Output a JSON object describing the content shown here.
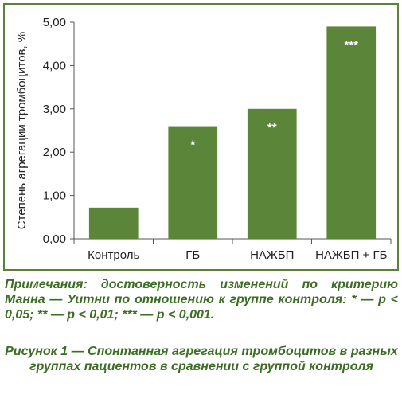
{
  "chart_data": {
    "type": "bar",
    "categories": [
      "Контроль",
      "ГБ",
      "НАЖБП",
      "НАЖБП + ГБ"
    ],
    "values": [
      0.72,
      2.6,
      3.0,
      4.9
    ],
    "annotations": [
      "",
      "*",
      "**",
      "***"
    ],
    "ylabel": "Степень агрегации тромбоцитов, %",
    "xlabel": "",
    "yticks": [
      "0,00",
      "1,00",
      "2,00",
      "3,00",
      "4,00",
      "5,00"
    ],
    "ylim": [
      0,
      5
    ],
    "grid": false,
    "bar_color": "#5b8539"
  },
  "note_text": "Примечания: достоверность изменений по критерию Манна — Уитни по отношению к группе контроля: * — p < 0,05; ** — p < 0,01; *** — p < 0,001.",
  "caption_text": "Рисунок 1 — Спонтанная агрегация тромбоцитов в разных группах пациентов в сравнении с группой контроля",
  "colors": {
    "frame": "#5c7f3a",
    "text_green": "#3b6d24",
    "axis": "#555555"
  }
}
